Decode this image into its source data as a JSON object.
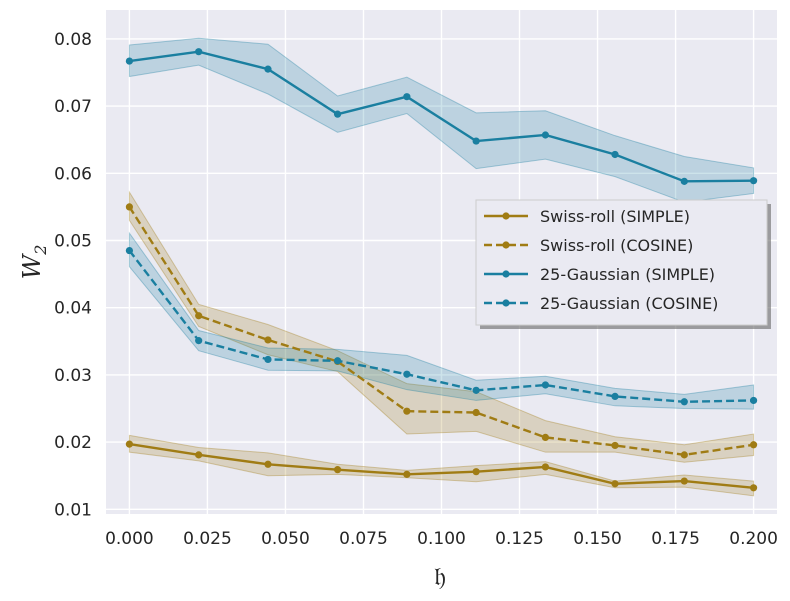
{
  "chart_data": {
    "type": "line",
    "title": "",
    "xlabel": "𝔥",
    "ylabel": "W",
    "ylabel_subscript": "2",
    "xlim": [
      -0.0075,
      0.2075
    ],
    "ylim": [
      0.0093,
      0.0843
    ],
    "xticks": [
      0.0,
      0.025,
      0.05,
      0.075,
      0.1,
      0.125,
      0.15,
      0.175,
      0.2
    ],
    "xtick_labels": [
      "0.000",
      "0.025",
      "0.050",
      "0.075",
      "0.100",
      "0.125",
      "0.150",
      "0.175",
      "0.200"
    ],
    "yticks": [
      0.01,
      0.02,
      0.03,
      0.04,
      0.05,
      0.06,
      0.07,
      0.08
    ],
    "ytick_labels": [
      "0.01",
      "0.02",
      "0.03",
      "0.04",
      "0.05",
      "0.06",
      "0.07",
      "0.08"
    ],
    "grid": true,
    "legend_position": "center-right",
    "x": [
      0.0,
      0.0222,
      0.0444,
      0.0667,
      0.0889,
      0.1111,
      0.1333,
      0.1556,
      0.1778,
      0.2
    ],
    "series": [
      {
        "name": "Swiss-roll (SIMPLE)",
        "color": "#a07c14",
        "dash": "solid",
        "values": [
          0.0197,
          0.0181,
          0.0167,
          0.0159,
          0.0152,
          0.0156,
          0.0163,
          0.0138,
          0.0142,
          0.0132
        ],
        "lower": [
          0.0185,
          0.0172,
          0.015,
          0.0152,
          0.0147,
          0.0141,
          0.0152,
          0.0132,
          0.0133,
          0.012
        ],
        "upper": [
          0.021,
          0.0192,
          0.0184,
          0.0167,
          0.0158,
          0.0165,
          0.0171,
          0.0142,
          0.0151,
          0.0142
        ]
      },
      {
        "name": "Swiss-roll (COSINE)",
        "color": "#a07c14",
        "dash": "dashed",
        "values": [
          0.055,
          0.0388,
          0.0352,
          0.032,
          0.0246,
          0.0244,
          0.0207,
          0.0195,
          0.0181,
          0.0196
        ],
        "lower": [
          0.053,
          0.0372,
          0.033,
          0.0305,
          0.0212,
          0.0216,
          0.0185,
          0.0185,
          0.017,
          0.018
        ],
        "upper": [
          0.0572,
          0.0405,
          0.0375,
          0.0336,
          0.0287,
          0.0275,
          0.0232,
          0.0208,
          0.0196,
          0.0212
        ]
      },
      {
        "name": "25-Gaussian (SIMPLE)",
        "color": "#1a7fa0",
        "dash": "solid",
        "values": [
          0.0767,
          0.0781,
          0.0755,
          0.0688,
          0.0714,
          0.0648,
          0.0657,
          0.0628,
          0.0588,
          0.0589
        ],
        "lower": [
          0.0744,
          0.0761,
          0.0718,
          0.0661,
          0.0689,
          0.0607,
          0.0621,
          0.0595,
          0.0557,
          0.057
        ],
        "upper": [
          0.0791,
          0.0801,
          0.0792,
          0.0715,
          0.0743,
          0.069,
          0.0693,
          0.0656,
          0.0625,
          0.0608
        ]
      },
      {
        "name": "25-Gaussian (COSINE)",
        "color": "#1a7fa0",
        "dash": "dashed",
        "values": [
          0.0485,
          0.0351,
          0.0323,
          0.0321,
          0.0301,
          0.0277,
          0.0285,
          0.0268,
          0.026,
          0.0262
        ],
        "lower": [
          0.0461,
          0.0336,
          0.0307,
          0.0306,
          0.0278,
          0.0262,
          0.0272,
          0.0254,
          0.025,
          0.0249
        ],
        "upper": [
          0.0511,
          0.0366,
          0.034,
          0.0338,
          0.0329,
          0.0292,
          0.0298,
          0.028,
          0.0271,
          0.0285
        ]
      }
    ],
    "colors": {
      "plot_background": "#eaeaf2",
      "grid": "#ffffff",
      "legend_background": "#eaeaf2",
      "legend_border": "#cccccc"
    }
  }
}
